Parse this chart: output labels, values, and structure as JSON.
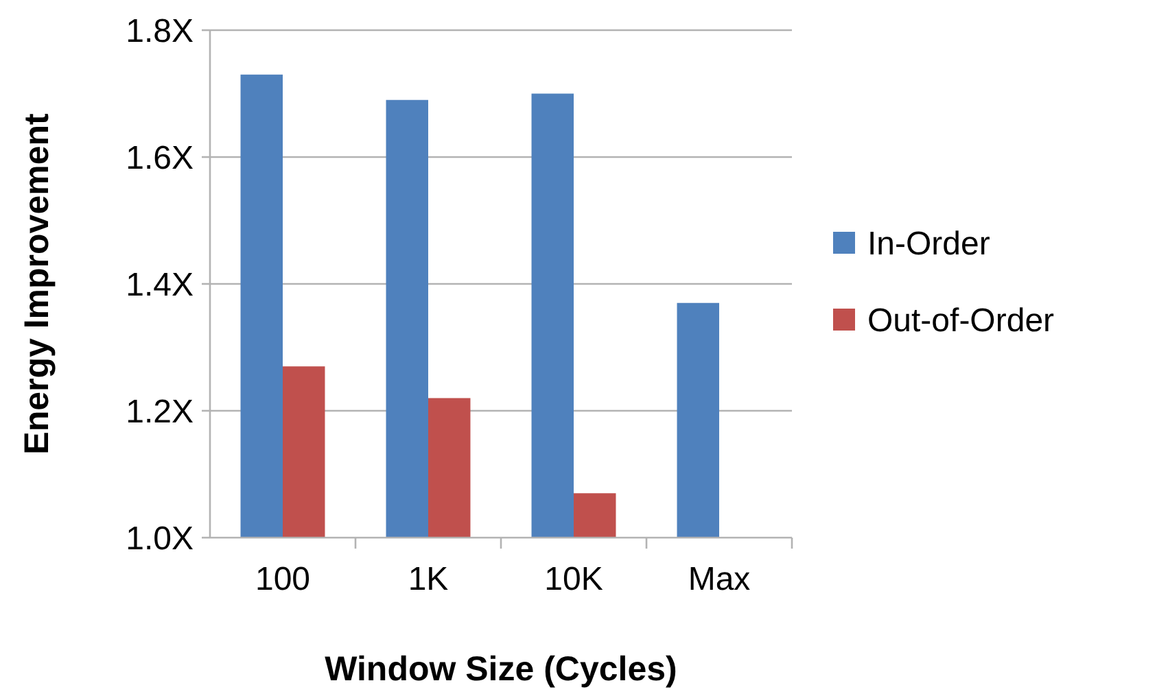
{
  "chart_data": {
    "type": "bar",
    "xlabel": "Window Size (Cycles)",
    "ylabel": "Energy Improvement",
    "categories": [
      "100",
      "1K",
      "10K",
      "Max"
    ],
    "series": [
      {
        "name": "In-Order",
        "color": "#4f81bd",
        "values": [
          1.73,
          1.69,
          1.7,
          1.37
        ]
      },
      {
        "name": "Out-of-Order",
        "color": "#c0504d",
        "values": [
          1.27,
          1.22,
          1.07,
          null
        ]
      }
    ],
    "ylim": [
      1.0,
      1.8
    ],
    "yticks": [
      {
        "value": 1.0,
        "label": "1.0X"
      },
      {
        "value": 1.2,
        "label": "1.2X"
      },
      {
        "value": 1.4,
        "label": "1.4X"
      },
      {
        "value": 1.6,
        "label": "1.6X"
      },
      {
        "value": 1.8,
        "label": "1.8X"
      }
    ],
    "grid": "y",
    "legend": "right"
  }
}
